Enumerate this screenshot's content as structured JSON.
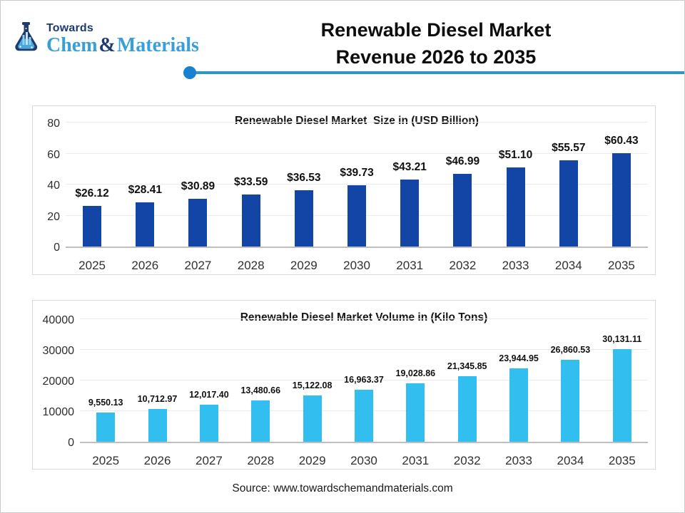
{
  "header": {
    "logo": {
      "top": "Towards",
      "chem": "Chem",
      "amp": "&",
      "materials": "Materials"
    },
    "title_line1": "Renewable Diesel Market",
    "title_line2": "Revenue 2026 to 2035"
  },
  "footer": {
    "source": "Source: www.towardschemandmaterials.com"
  },
  "colors": {
    "bar_navy": "#1345A6",
    "bar_cyan": "#33BEF0",
    "rule_line": "#2D97BE",
    "rule_dot": "#1981D2",
    "logo_navy": "#1E3A6E",
    "logo_blue": "#3A9FD8",
    "panel_border": "#D9D9D9",
    "baseline": "#BFBFBF"
  },
  "chart_data": [
    {
      "type": "bar",
      "title": "Renewable Diesel Market  Size in (USD Billion)",
      "categories": [
        "2025",
        "2026",
        "2027",
        "2028",
        "2029",
        "2030",
        "2031",
        "2032",
        "2033",
        "2034",
        "2035"
      ],
      "values": [
        26.12,
        28.41,
        30.89,
        33.59,
        36.53,
        39.73,
        43.21,
        46.99,
        51.1,
        55.57,
        60.43
      ],
      "labels": [
        "$26.12",
        "$28.41",
        "$30.89",
        "$33.59",
        "$36.53",
        "$39.73",
        "$43.21",
        "$46.99",
        "$51.10",
        "$55.57",
        "$60.43"
      ],
      "xlabel": "",
      "ylabel": "",
      "ylim": [
        0,
        80
      ],
      "yticks": [
        0,
        20,
        40,
        60,
        80
      ],
      "ytick_labels": [
        "0",
        "20",
        "40",
        "60",
        "80"
      ],
      "bar_color": "#1345A6",
      "grid": true,
      "legend": "none"
    },
    {
      "type": "bar",
      "title": "Renewable Diesel Market Volume in (Kilo Tons)",
      "categories": [
        "2025",
        "2026",
        "2027",
        "2028",
        "2029",
        "2030",
        "2031",
        "2032",
        "2033",
        "2034",
        "2035"
      ],
      "values": [
        9550.13,
        10712.97,
        12017.4,
        13480.66,
        15122.08,
        16963.37,
        19028.86,
        21345.85,
        23944.95,
        26860.53,
        30131.11
      ],
      "labels": [
        "9,550.13",
        "10,712.97",
        "12,017.40",
        "13,480.66",
        "15,122.08",
        "16,963.37",
        "19,028.86",
        "21,345.85",
        "23,944.95",
        "26,860.53",
        "30,131.11"
      ],
      "xlabel": "",
      "ylabel": "",
      "ylim": [
        0,
        40000
      ],
      "yticks": [
        0,
        10000,
        20000,
        30000,
        40000
      ],
      "ytick_labels": [
        "0",
        "10000",
        "20000",
        "30000",
        "40000"
      ],
      "bar_color": "#33BEF0",
      "grid": true,
      "legend": "none"
    }
  ]
}
